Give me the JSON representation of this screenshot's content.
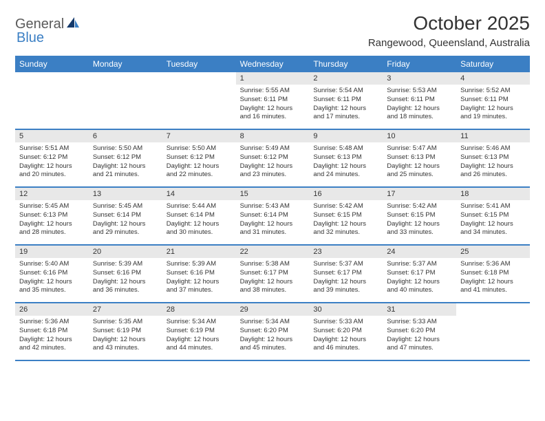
{
  "logo": {
    "text1": "General",
    "text2": "Blue"
  },
  "title": "October 2025",
  "location": "Rangewood, Queensland, Australia",
  "colors": {
    "header_bg": "#3b7fc4",
    "header_text": "#ffffff",
    "daynum_bg": "#e8e8e8",
    "rule": "#3b7fc4",
    "text": "#333333",
    "logo_gray": "#5a5a5a",
    "logo_blue": "#3b7fc4"
  },
  "weekdays": [
    "Sunday",
    "Monday",
    "Tuesday",
    "Wednesday",
    "Thursday",
    "Friday",
    "Saturday"
  ],
  "weeks": [
    [
      {
        "n": "",
        "sr": "",
        "ss": "",
        "dl": ""
      },
      {
        "n": "",
        "sr": "",
        "ss": "",
        "dl": ""
      },
      {
        "n": "",
        "sr": "",
        "ss": "",
        "dl": ""
      },
      {
        "n": "1",
        "sr": "Sunrise: 5:55 AM",
        "ss": "Sunset: 6:11 PM",
        "dl": "Daylight: 12 hours and 16 minutes."
      },
      {
        "n": "2",
        "sr": "Sunrise: 5:54 AM",
        "ss": "Sunset: 6:11 PM",
        "dl": "Daylight: 12 hours and 17 minutes."
      },
      {
        "n": "3",
        "sr": "Sunrise: 5:53 AM",
        "ss": "Sunset: 6:11 PM",
        "dl": "Daylight: 12 hours and 18 minutes."
      },
      {
        "n": "4",
        "sr": "Sunrise: 5:52 AM",
        "ss": "Sunset: 6:11 PM",
        "dl": "Daylight: 12 hours and 19 minutes."
      }
    ],
    [
      {
        "n": "5",
        "sr": "Sunrise: 5:51 AM",
        "ss": "Sunset: 6:12 PM",
        "dl": "Daylight: 12 hours and 20 minutes."
      },
      {
        "n": "6",
        "sr": "Sunrise: 5:50 AM",
        "ss": "Sunset: 6:12 PM",
        "dl": "Daylight: 12 hours and 21 minutes."
      },
      {
        "n": "7",
        "sr": "Sunrise: 5:50 AM",
        "ss": "Sunset: 6:12 PM",
        "dl": "Daylight: 12 hours and 22 minutes."
      },
      {
        "n": "8",
        "sr": "Sunrise: 5:49 AM",
        "ss": "Sunset: 6:12 PM",
        "dl": "Daylight: 12 hours and 23 minutes."
      },
      {
        "n": "9",
        "sr": "Sunrise: 5:48 AM",
        "ss": "Sunset: 6:13 PM",
        "dl": "Daylight: 12 hours and 24 minutes."
      },
      {
        "n": "10",
        "sr": "Sunrise: 5:47 AM",
        "ss": "Sunset: 6:13 PM",
        "dl": "Daylight: 12 hours and 25 minutes."
      },
      {
        "n": "11",
        "sr": "Sunrise: 5:46 AM",
        "ss": "Sunset: 6:13 PM",
        "dl": "Daylight: 12 hours and 26 minutes."
      }
    ],
    [
      {
        "n": "12",
        "sr": "Sunrise: 5:45 AM",
        "ss": "Sunset: 6:13 PM",
        "dl": "Daylight: 12 hours and 28 minutes."
      },
      {
        "n": "13",
        "sr": "Sunrise: 5:45 AM",
        "ss": "Sunset: 6:14 PM",
        "dl": "Daylight: 12 hours and 29 minutes."
      },
      {
        "n": "14",
        "sr": "Sunrise: 5:44 AM",
        "ss": "Sunset: 6:14 PM",
        "dl": "Daylight: 12 hours and 30 minutes."
      },
      {
        "n": "15",
        "sr": "Sunrise: 5:43 AM",
        "ss": "Sunset: 6:14 PM",
        "dl": "Daylight: 12 hours and 31 minutes."
      },
      {
        "n": "16",
        "sr": "Sunrise: 5:42 AM",
        "ss": "Sunset: 6:15 PM",
        "dl": "Daylight: 12 hours and 32 minutes."
      },
      {
        "n": "17",
        "sr": "Sunrise: 5:42 AM",
        "ss": "Sunset: 6:15 PM",
        "dl": "Daylight: 12 hours and 33 minutes."
      },
      {
        "n": "18",
        "sr": "Sunrise: 5:41 AM",
        "ss": "Sunset: 6:15 PM",
        "dl": "Daylight: 12 hours and 34 minutes."
      }
    ],
    [
      {
        "n": "19",
        "sr": "Sunrise: 5:40 AM",
        "ss": "Sunset: 6:16 PM",
        "dl": "Daylight: 12 hours and 35 minutes."
      },
      {
        "n": "20",
        "sr": "Sunrise: 5:39 AM",
        "ss": "Sunset: 6:16 PM",
        "dl": "Daylight: 12 hours and 36 minutes."
      },
      {
        "n": "21",
        "sr": "Sunrise: 5:39 AM",
        "ss": "Sunset: 6:16 PM",
        "dl": "Daylight: 12 hours and 37 minutes."
      },
      {
        "n": "22",
        "sr": "Sunrise: 5:38 AM",
        "ss": "Sunset: 6:17 PM",
        "dl": "Daylight: 12 hours and 38 minutes."
      },
      {
        "n": "23",
        "sr": "Sunrise: 5:37 AM",
        "ss": "Sunset: 6:17 PM",
        "dl": "Daylight: 12 hours and 39 minutes."
      },
      {
        "n": "24",
        "sr": "Sunrise: 5:37 AM",
        "ss": "Sunset: 6:17 PM",
        "dl": "Daylight: 12 hours and 40 minutes."
      },
      {
        "n": "25",
        "sr": "Sunrise: 5:36 AM",
        "ss": "Sunset: 6:18 PM",
        "dl": "Daylight: 12 hours and 41 minutes."
      }
    ],
    [
      {
        "n": "26",
        "sr": "Sunrise: 5:36 AM",
        "ss": "Sunset: 6:18 PM",
        "dl": "Daylight: 12 hours and 42 minutes."
      },
      {
        "n": "27",
        "sr": "Sunrise: 5:35 AM",
        "ss": "Sunset: 6:19 PM",
        "dl": "Daylight: 12 hours and 43 minutes."
      },
      {
        "n": "28",
        "sr": "Sunrise: 5:34 AM",
        "ss": "Sunset: 6:19 PM",
        "dl": "Daylight: 12 hours and 44 minutes."
      },
      {
        "n": "29",
        "sr": "Sunrise: 5:34 AM",
        "ss": "Sunset: 6:20 PM",
        "dl": "Daylight: 12 hours and 45 minutes."
      },
      {
        "n": "30",
        "sr": "Sunrise: 5:33 AM",
        "ss": "Sunset: 6:20 PM",
        "dl": "Daylight: 12 hours and 46 minutes."
      },
      {
        "n": "31",
        "sr": "Sunrise: 5:33 AM",
        "ss": "Sunset: 6:20 PM",
        "dl": "Daylight: 12 hours and 47 minutes."
      },
      {
        "n": "",
        "sr": "",
        "ss": "",
        "dl": ""
      }
    ]
  ]
}
